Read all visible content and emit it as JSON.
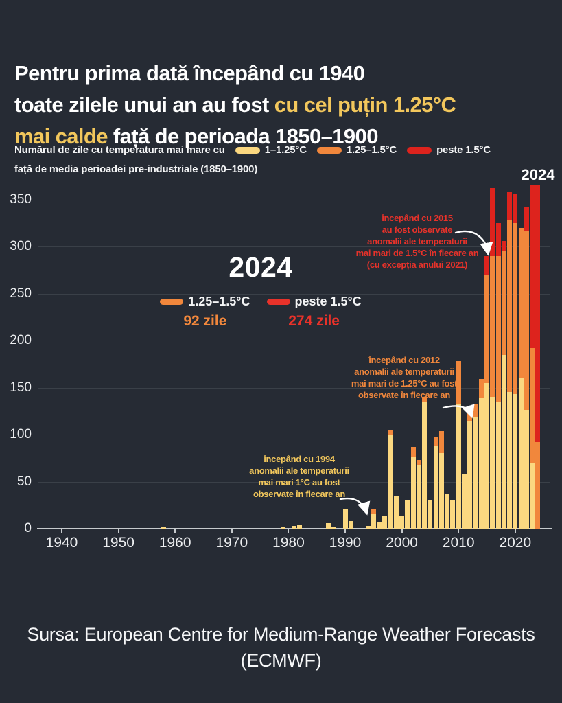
{
  "title": {
    "l1": "Pentru prima dată începând cu 1940",
    "l2a": "toate zilele unui an au fost ",
    "l2b": "cu cel puțin 1.25°C",
    "l3a": "mai calde",
    "l3b": " față de perioada 1850–1900"
  },
  "subtitle": {
    "line1": "Numărul de zile cu temperatura mai mare cu",
    "line2": "față de media perioadei pre-industriale (1850–1900)"
  },
  "legend": [
    {
      "label": "1–1.25°C",
      "color": "#fbd880"
    },
    {
      "label": "1.25–1.5°C",
      "color": "#f1873c"
    },
    {
      "label": "peste 1.5°C",
      "color": "#dd231d"
    }
  ],
  "top_right_year": "2024",
  "callout_2024": {
    "year": "2024",
    "items": [
      {
        "label": "1.25–1.5°C",
        "value": "92 zile",
        "color": "#f1873c"
      },
      {
        "label": "peste 1.5°C",
        "value": "274 zile",
        "color": "#e8322a"
      }
    ]
  },
  "annotations": [
    {
      "id": "a2015",
      "color": "#e8322a",
      "lines": [
        "începând cu 2015",
        "au fost observate",
        "anomalii ale temperaturii",
        "mai mari de 1.5°C în fiecare an",
        "(cu excepția anului 2021)"
      ]
    },
    {
      "id": "a2012",
      "color": "#f1873c",
      "lines": [
        "începând cu 2012",
        "anomalii ale temperaturii",
        "mai mari de 1.25°C au fost",
        "observate în fiecare an"
      ]
    },
    {
      "id": "a1994",
      "color": "#f2c75c",
      "lines": [
        "începând cu 1994",
        "anomalii ale temperaturii",
        "mai mari 1°C au fost",
        "observate în fiecare an"
      ]
    }
  ],
  "source": {
    "line1": "Sursa: European Centre for Medium-Range Weather Forecasts",
    "line2": "(ECMWF)"
  },
  "chart_data": {
    "type": "bar",
    "stacked": true,
    "title": "Numărul de zile cu temperatura mai mare decât media perioadei pre-industriale (1850–1900)",
    "xlabel": "",
    "ylabel": "",
    "x_range": [
      1938,
      2025
    ],
    "ylim": [
      0,
      370
    ],
    "x_ticks": [
      1940,
      1950,
      1960,
      1970,
      1980,
      1990,
      2000,
      2010,
      2020
    ],
    "y_ticks": [
      0,
      50,
      100,
      150,
      200,
      250,
      300,
      350
    ],
    "grid": true,
    "legend_position": "top",
    "series_names": [
      "1–1.25°C",
      "1.25–1.5°C",
      "peste 1.5°C"
    ],
    "series_colors": [
      "#fbd880",
      "#f1873c",
      "#dd231d"
    ],
    "other_years_value": 0,
    "bars": [
      {
        "year": 1958,
        "values": [
          2,
          0,
          0
        ]
      },
      {
        "year": 1979,
        "values": [
          2,
          0,
          0
        ]
      },
      {
        "year": 1981,
        "values": [
          3,
          0,
          0
        ]
      },
      {
        "year": 1982,
        "values": [
          4,
          0,
          0
        ]
      },
      {
        "year": 1987,
        "values": [
          6,
          0,
          0
        ]
      },
      {
        "year": 1988,
        "values": [
          2,
          0,
          0
        ]
      },
      {
        "year": 1990,
        "values": [
          21,
          0,
          0
        ]
      },
      {
        "year": 1991,
        "values": [
          8,
          0,
          0
        ]
      },
      {
        "year": 1994,
        "values": [
          3,
          0,
          0
        ]
      },
      {
        "year": 1995,
        "values": [
          16,
          5,
          0
        ]
      },
      {
        "year": 1996,
        "values": [
          7,
          0,
          0
        ]
      },
      {
        "year": 1997,
        "values": [
          14,
          0,
          0
        ]
      },
      {
        "year": 1998,
        "values": [
          99,
          6,
          0
        ]
      },
      {
        "year": 1999,
        "values": [
          35,
          0,
          0
        ]
      },
      {
        "year": 2000,
        "values": [
          13,
          0,
          0
        ]
      },
      {
        "year": 2001,
        "values": [
          31,
          0,
          0
        ]
      },
      {
        "year": 2002,
        "values": [
          76,
          11,
          0
        ]
      },
      {
        "year": 2003,
        "values": [
          68,
          5,
          0
        ]
      },
      {
        "year": 2004,
        "values": [
          135,
          5,
          0
        ]
      },
      {
        "year": 2005,
        "values": [
          31,
          0,
          0
        ]
      },
      {
        "year": 2006,
        "values": [
          88,
          9,
          0
        ]
      },
      {
        "year": 2007,
        "values": [
          80,
          24,
          0
        ]
      },
      {
        "year": 2008,
        "values": [
          37,
          0,
          0
        ]
      },
      {
        "year": 2009,
        "values": [
          31,
          0,
          0
        ]
      },
      {
        "year": 2010,
        "values": [
          133,
          45,
          0
        ]
      },
      {
        "year": 2011,
        "values": [
          58,
          0,
          0
        ]
      },
      {
        "year": 2012,
        "values": [
          115,
          10,
          0
        ]
      },
      {
        "year": 2013,
        "values": [
          118,
          14,
          0
        ]
      },
      {
        "year": 2014,
        "values": [
          139,
          20,
          0
        ]
      },
      {
        "year": 2015,
        "values": [
          155,
          115,
          20
        ]
      },
      {
        "year": 2016,
        "values": [
          140,
          150,
          72
        ]
      },
      {
        "year": 2017,
        "values": [
          135,
          155,
          35
        ]
      },
      {
        "year": 2018,
        "values": [
          185,
          111,
          10
        ]
      },
      {
        "year": 2019,
        "values": [
          145,
          183,
          30
        ]
      },
      {
        "year": 2020,
        "values": [
          143,
          182,
          31
        ]
      },
      {
        "year": 2021,
        "values": [
          160,
          160,
          0
        ]
      },
      {
        "year": 2022,
        "values": [
          126,
          190,
          26
        ]
      },
      {
        "year": 2023,
        "values": [
          69,
          123,
          173
        ]
      },
      {
        "year": 2024,
        "values": [
          0,
          92,
          274
        ]
      }
    ]
  }
}
